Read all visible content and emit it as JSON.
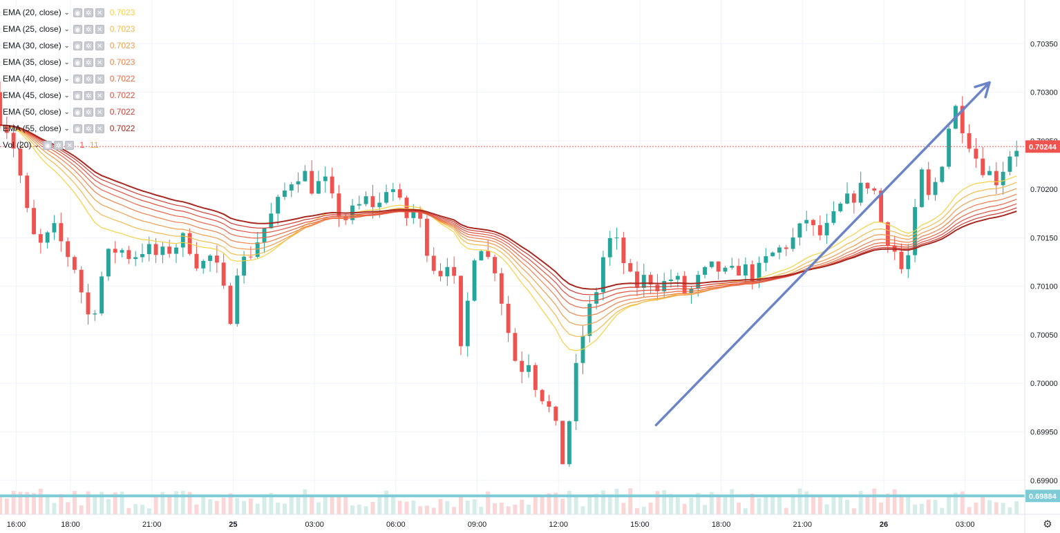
{
  "legend": {
    "ema_rows": [
      {
        "label": "EMA (20, close)",
        "value": "0.7023",
        "color": "#f5d142"
      },
      {
        "label": "EMA (25, close)",
        "value": "0.7023",
        "color": "#f3b94a"
      },
      {
        "label": "EMA (30, close)",
        "value": "0.7023",
        "color": "#f19c4a"
      },
      {
        "label": "EMA (35, close)",
        "value": "0.7023",
        "color": "#ef8049"
      },
      {
        "label": "EMA (40, close)",
        "value": "0.7022",
        "color": "#ea6644"
      },
      {
        "label": "EMA (45, close)",
        "value": "0.7022",
        "color": "#e14f3c"
      },
      {
        "label": "EMA (50, close)",
        "value": "0.7022",
        "color": "#cf3a32"
      },
      {
        "label": "EMA (55, close)",
        "value": "0.7022",
        "color": "#a8281f"
      }
    ],
    "vol_row": {
      "label": "Vol (20)",
      "value_a": "1",
      "value_b": "11",
      "color_a": "#ef5350",
      "color_b": "#f5a623"
    }
  },
  "icons": {
    "eye": "eye-icon",
    "settings": "gear-icon",
    "remove": "close-icon",
    "chevron": "chevron-down-icon",
    "chart_settings": "gear-icon"
  },
  "colors": {
    "up": "#26a69a",
    "down": "#ef5350",
    "grid": "#f0f3fa",
    "axis_text": "#131722",
    "price_tag": "#ef5350",
    "support_line": "#7ecbd8",
    "trend_arrow": "#6b83c7",
    "vol_up": "#d4ede8",
    "vol_down": "#fad6d6"
  },
  "chart_data": {
    "type": "candlestick",
    "series_note": "EUR-like FX pair, 15-minute candles with EMA ribbon",
    "y_range": [
      0.69865,
      0.70395
    ],
    "y_ticks": [
      "0.70350",
      "0.70300",
      "0.70250",
      "0.70200",
      "0.70150",
      "0.70100",
      "0.70050",
      "0.70000",
      "0.69950",
      "0.69900"
    ],
    "y_tick_values": [
      0.7035,
      0.703,
      0.7025,
      0.702,
      0.7015,
      0.701,
      0.7005,
      0.7,
      0.6995,
      0.699
    ],
    "x_labels": [
      {
        "label": "16:00",
        "hour": 16.0
      },
      {
        "label": "18:00",
        "hour": 18.0
      },
      {
        "label": "21:00",
        "hour": 21.0
      },
      {
        "label": "25",
        "hour": 24.0,
        "bold": true
      },
      {
        "label": "03:00",
        "hour": 27.0
      },
      {
        "label": "06:00",
        "hour": 30.0
      },
      {
        "label": "09:00",
        "hour": 33.0
      },
      {
        "label": "12:00",
        "hour": 36.0
      },
      {
        "label": "15:00",
        "hour": 39.0
      },
      {
        "label": "18:00",
        "hour": 42.0
      },
      {
        "label": "21:00",
        "hour": 45.0
      },
      {
        "label": "26",
        "hour": 48.0,
        "bold": true
      },
      {
        "label": "03:00",
        "hour": 51.0
      }
    ],
    "hour_range": [
      15.4,
      53.2
    ],
    "close_path": [
      [
        15.4,
        0.703
      ],
      [
        15.7,
        0.7027
      ],
      [
        16.0,
        0.7026
      ],
      [
        16.3,
        0.7023
      ],
      [
        16.6,
        0.7018
      ],
      [
        16.9,
        0.7015
      ],
      [
        17.2,
        0.7014
      ],
      [
        17.6,
        0.7016
      ],
      [
        18.0,
        0.7014
      ],
      [
        18.4,
        0.7012
      ],
      [
        18.8,
        0.7008
      ],
      [
        19.0,
        0.7006
      ],
      [
        19.3,
        0.701
      ],
      [
        19.6,
        0.7013
      ],
      [
        20.0,
        0.7014
      ],
      [
        20.5,
        0.7013
      ],
      [
        21.0,
        0.7014
      ],
      [
        21.5,
        0.7013
      ],
      [
        22.0,
        0.7014
      ],
      [
        22.5,
        0.7015
      ],
      [
        23.0,
        0.7012
      ],
      [
        23.4,
        0.7013
      ],
      [
        23.8,
        0.7011
      ],
      [
        24.1,
        0.7006
      ],
      [
        24.4,
        0.7012
      ],
      [
        24.8,
        0.7013
      ],
      [
        25.2,
        0.7015
      ],
      [
        25.6,
        0.7017
      ],
      [
        26.0,
        0.7019
      ],
      [
        26.4,
        0.7021
      ],
      [
        26.8,
        0.7022
      ],
      [
        27.2,
        0.702
      ],
      [
        27.6,
        0.7021
      ],
      [
        28.0,
        0.7018
      ],
      [
        28.4,
        0.7017
      ],
      [
        28.8,
        0.7018
      ],
      [
        29.2,
        0.7019
      ],
      [
        29.6,
        0.7018
      ],
      [
        30.0,
        0.7021
      ],
      [
        30.3,
        0.7019
      ],
      [
        30.6,
        0.7017
      ],
      [
        31.0,
        0.7018
      ],
      [
        31.4,
        0.7014
      ],
      [
        31.8,
        0.7011
      ],
      [
        32.2,
        0.7013
      ],
      [
        32.5,
        0.7009
      ],
      [
        32.7,
        0.7001
      ],
      [
        33.0,
        0.7012
      ],
      [
        33.3,
        0.7015
      ],
      [
        33.6,
        0.7013
      ],
      [
        33.9,
        0.7012
      ],
      [
        34.2,
        0.7008
      ],
      [
        34.5,
        0.7004
      ],
      [
        34.8,
        0.7001
      ],
      [
        35.1,
        0.7003
      ],
      [
        35.4,
        0.7
      ],
      [
        35.8,
        0.6998
      ],
      [
        36.1,
        0.6996
      ],
      [
        36.3,
        0.6993
      ],
      [
        36.5,
        0.6991
      ],
      [
        36.7,
        0.6998
      ],
      [
        37.0,
        0.7003
      ],
      [
        37.3,
        0.7007
      ],
      [
        37.6,
        0.7009
      ],
      [
        37.9,
        0.7013
      ],
      [
        38.2,
        0.7015
      ],
      [
        38.5,
        0.7014
      ],
      [
        38.8,
        0.7011
      ],
      [
        39.1,
        0.701
      ],
      [
        39.5,
        0.7011
      ],
      [
        40.0,
        0.701
      ],
      [
        40.5,
        0.7011
      ],
      [
        41.0,
        0.7009
      ],
      [
        41.5,
        0.7011
      ],
      [
        42.0,
        0.7012
      ],
      [
        42.5,
        0.7011
      ],
      [
        43.0,
        0.7012
      ],
      [
        43.5,
        0.7011
      ],
      [
        44.0,
        0.7013
      ],
      [
        44.5,
        0.7014
      ],
      [
        45.0,
        0.7015
      ],
      [
        45.4,
        0.7017
      ],
      [
        45.8,
        0.7015
      ],
      [
        46.2,
        0.7016
      ],
      [
        46.6,
        0.7018
      ],
      [
        47.0,
        0.7019
      ],
      [
        47.4,
        0.702
      ],
      [
        47.8,
        0.7021
      ],
      [
        48.2,
        0.7016
      ],
      [
        48.6,
        0.7014
      ],
      [
        49.0,
        0.7011
      ],
      [
        49.3,
        0.7015
      ],
      [
        49.6,
        0.7022
      ],
      [
        49.9,
        0.7019
      ],
      [
        50.2,
        0.7021
      ],
      [
        50.5,
        0.7024
      ],
      [
        50.8,
        0.7029
      ],
      [
        51.1,
        0.7027
      ],
      [
        51.4,
        0.7025
      ],
      [
        51.7,
        0.7023
      ],
      [
        52.0,
        0.7022
      ],
      [
        52.4,
        0.7021
      ],
      [
        52.8,
        0.7023
      ],
      [
        53.0,
        0.70244
      ]
    ],
    "ema_periods": [
      20,
      25,
      30,
      35,
      40,
      45,
      50,
      55
    ],
    "last_price": "0.70244",
    "last_price_value": 0.70244,
    "support_level": "0.69884",
    "support_value": 0.69884,
    "trend_arrow": {
      "from": [
        39.6,
        0.69957
      ],
      "to": [
        51.9,
        0.7031
      ]
    },
    "grid": true
  }
}
